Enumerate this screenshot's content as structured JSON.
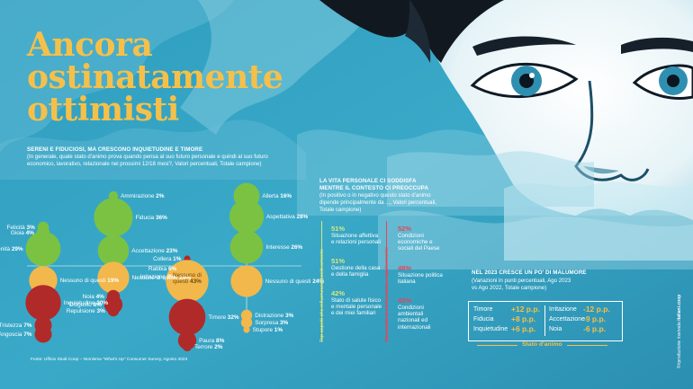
{
  "title_lines": [
    "Ancora",
    "ostinatamente",
    "ottimisti"
  ],
  "chart1": {
    "heading": "SERENI E FIDUCIOSI, MA CRESCONO INQUIETUDINE E TIMORE",
    "subtitle_lines": [
      "(In generale, quale stato d'animo prova quando pensa al suo futuro personale e quindi al suo futuro",
      "economico, lavorativo, relazionale nei prossimi 12/18 mesi?, Valori percentuali, Totale campione)"
    ],
    "source": "Fonte: Ufficio Studi Coop – Nomisma \"What's Up\" Consumer Survey, Agosto 2023"
  },
  "chart_data": [
    {
      "type": "bubble",
      "title": "SERENI E FIDUCIOSI, MA CRESCONO INQUIETUDINE E TIMORE",
      "columns": [
        {
          "items": [
            {
              "label": "Felicità",
              "value": 3,
              "group": "positive"
            },
            {
              "label": "Gioia",
              "value": 4,
              "group": "positive"
            },
            {
              "label": "Serenità",
              "value": 29,
              "group": "positive"
            },
            {
              "label": "Nessuno di questi",
              "value": 19,
              "group": "neutral"
            },
            {
              "label": "Inquietudine",
              "value": 30,
              "group": "negative"
            },
            {
              "label": "Tristezza",
              "value": 7,
              "group": "negative"
            },
            {
              "label": "Angoscia",
              "value": 7,
              "group": "negative"
            }
          ]
        },
        {
          "items": [
            {
              "label": "Ammirazione",
              "value": 2,
              "group": "positive"
            },
            {
              "label": "Fiducia",
              "value": 36,
              "group": "positive"
            },
            {
              "label": "Accettazione",
              "value": 23,
              "group": "positive"
            },
            {
              "label": "Nessuno di questi",
              "value": 24,
              "group": "neutral"
            },
            {
              "label": "Noia",
              "value": 4,
              "group": "negative"
            },
            {
              "label": "Disgusto",
              "value": 8,
              "group": "negative"
            },
            {
              "label": "Repulsione",
              "value": 3,
              "group": "negative"
            }
          ]
        },
        {
          "items": [
            {
              "label": "Collera",
              "value": 1,
              "group": "negative"
            },
            {
              "label": "Rabbia",
              "value": 6,
              "group": "negative"
            },
            {
              "label": "Irritazione",
              "value": 8,
              "group": "negative"
            },
            {
              "label": "Nessuno di questi",
              "value": 43,
              "group": "neutral"
            },
            {
              "label": "Timore",
              "value": 32,
              "group": "negative"
            },
            {
              "label": "Paura",
              "value": 8,
              "group": "negative"
            },
            {
              "label": "Terrore",
              "value": 2,
              "group": "negative"
            }
          ]
        },
        {
          "items": [
            {
              "label": "Allerta",
              "value": 16,
              "group": "positive"
            },
            {
              "label": "Aspettativa",
              "value": 28,
              "group": "positive"
            },
            {
              "label": "Interesse",
              "value": 26,
              "group": "positive"
            },
            {
              "label": "Nessuno di questi",
              "value": 24,
              "group": "neutral"
            },
            {
              "label": "Distrazione",
              "value": 3,
              "group": "neutral"
            },
            {
              "label": "Sorpresa",
              "value": 3,
              "group": "neutral"
            },
            {
              "label": "Stupore",
              "value": 1,
              "group": "neutral"
            }
          ]
        }
      ],
      "colors": {
        "positive": "#7cc242",
        "neutral": "#f2b84b",
        "negative": "#b02a2a"
      }
    },
    {
      "type": "table",
      "title": "LA VITA PERSONALE CI SODDISFA MENTRE IL CONTESTO CI PREOCCUPA",
      "left_rows": [
        {
          "value": "51%",
          "text_lines": [
            "Situazione affettiva",
            "e relazioni personali"
          ]
        },
        {
          "value": "51%",
          "text_lines": [
            "Gestione della casa",
            "e della famiglia"
          ]
        },
        {
          "value": "42%",
          "text_lines": [
            "Stato di salute fisico",
            "e mentale personale",
            "e dei miei familiari"
          ]
        }
      ],
      "right_rows": [
        {
          "value": "52%",
          "text_lines": [
            "Condizioni",
            "economiche e",
            "sociali del Paese"
          ]
        },
        {
          "value": "48%",
          "text_lines": [
            "Situazione politica",
            "italiana"
          ]
        },
        {
          "value": "42%",
          "text_lines": [
            "Condizioni",
            "ambientali",
            "nazionali ed",
            "internazionali"
          ]
        }
      ]
    },
    {
      "type": "table",
      "title": "NEL 2023 CRESCE UN PO' DI MALUMORE",
      "rows": [
        {
          "label": "Timore",
          "value": "+12 p.p."
        },
        {
          "label": "Fiducia",
          "value": "+8 p.p."
        },
        {
          "label": "Inquietudine",
          "value": "+6 p.p."
        },
        {
          "label": "Irritazione",
          "value": "-12 p.p."
        },
        {
          "label": "Accettazione",
          "value": "-9 p.p."
        },
        {
          "label": "Noia",
          "value": "-6 p.p."
        }
      ]
    }
  ],
  "chart2": {
    "heading_lines": [
      "LA VITA PERSONALE CI SODDISFA",
      "MENTRE IL CONTESTO CI PREOCCUPA"
    ],
    "subtitle_lines": [
      "(In positivo o in negativo questo stato d'animo",
      "dipende principalmente da ..., Valori percentuali,",
      "Totale campione)"
    ],
    "left_vertical": "Top aspetti che influenzano positivamente",
    "right_vertical": "Top aspetti che influenzano negativamente"
  },
  "chart3": {
    "heading": "NEL 2023 CRESCE UN PO' DI MALUMORE",
    "subtitle_lines": [
      "(Variazioni in punti percentuali, Ago 2023",
      "vs Ago 2022, Totale campione)"
    ],
    "footer": "Stato d'animo"
  },
  "credit": "©riproduzione riservata",
  "brand": "italiani.coop"
}
